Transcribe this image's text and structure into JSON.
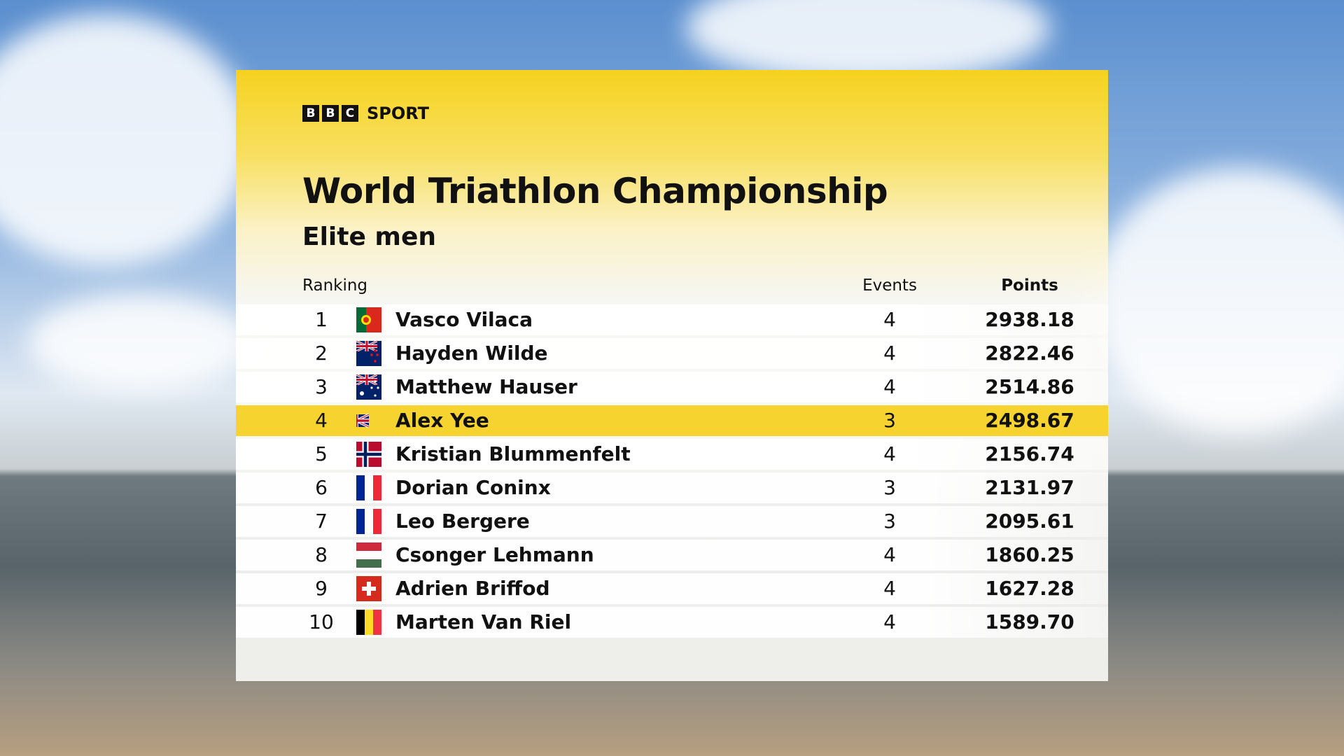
{
  "header": {
    "logo": [
      "B",
      "B",
      "C"
    ],
    "brand": "SPORT"
  },
  "title": "World Triathlon Championship",
  "subtitle": "Elite men",
  "table": {
    "columns": [
      "Ranking",
      "Events",
      "Points"
    ],
    "rows": [
      {
        "rank": 1,
        "name": "Vasco Vilaca",
        "events": 4,
        "points": "2938.18"
      },
      {
        "rank": 2,
        "name": "Hayden Wilde",
        "events": 4,
        "points": "2822.46"
      },
      {
        "rank": 3,
        "name": "Matthew Hauser",
        "events": 4,
        "points": "2514.86"
      },
      {
        "rank": 4,
        "name": "Alex Yee",
        "events": 3,
        "points": "2498.67",
        "highlight": true
      },
      {
        "rank": 5,
        "name": "Kristian Blummenfelt",
        "events": 4,
        "points": "2156.74"
      },
      {
        "rank": 6,
        "name": "Dorian Coninx",
        "events": 3,
        "points": "2131.97"
      },
      {
        "rank": 7,
        "name": "Leo Bergere",
        "events": 3,
        "points": "2095.61"
      },
      {
        "rank": 8,
        "name": "Csonger Lehmann",
        "events": 4,
        "points": "1860.25"
      },
      {
        "rank": 9,
        "name": "Adrien Briffod",
        "events": 4,
        "points": "1627.28"
      },
      {
        "rank": 10,
        "name": "Marten Van Riel",
        "events": 4,
        "points": "1589.70"
      }
    ]
  }
}
